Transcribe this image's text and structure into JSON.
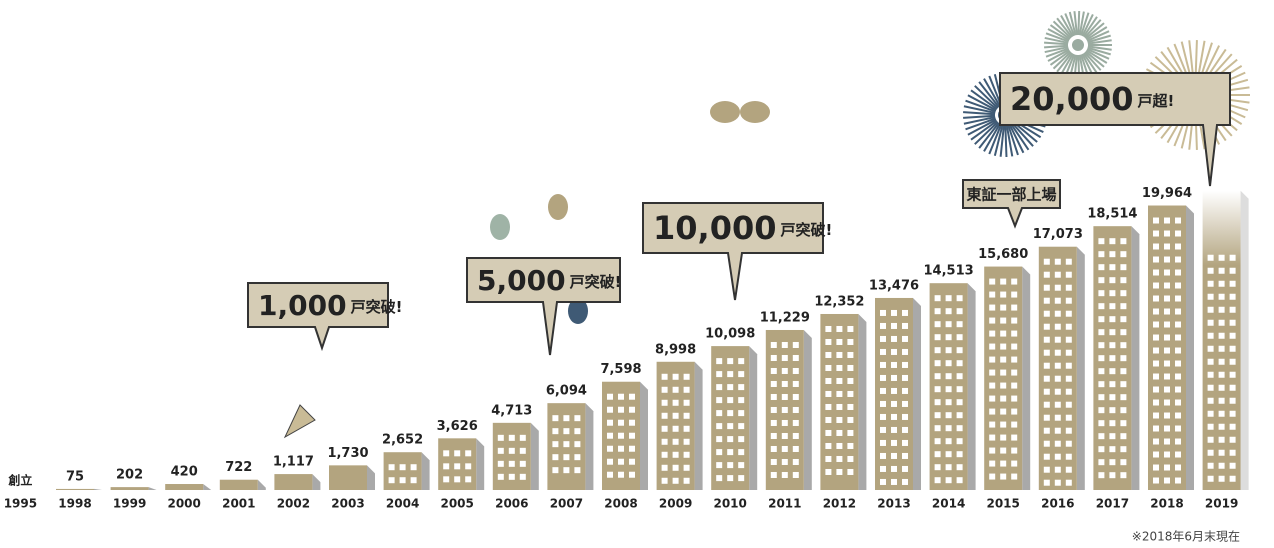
{
  "chart_data": {
    "type": "bar",
    "founding_label": "創立",
    "categories": [
      "1995",
      "1998",
      "1999",
      "2000",
      "2001",
      "2002",
      "2003",
      "2004",
      "2005",
      "2006",
      "2007",
      "2008",
      "2009",
      "2010",
      "2011",
      "2012",
      "2013",
      "2014",
      "2015",
      "2016",
      "2017",
      "2018",
      "2019"
    ],
    "values": [
      null,
      75,
      202,
      420,
      722,
      1117,
      1730,
      2652,
      3626,
      4713,
      6094,
      7598,
      8998,
      10098,
      11229,
      12352,
      13476,
      14513,
      15680,
      17073,
      18514,
      19964,
      21000
    ],
    "value_labels": [
      null,
      "75",
      "202",
      "420",
      "722",
      "1,117",
      "1,730",
      "2,652",
      "3,626",
      "4,713",
      "6,094",
      "7,598",
      "8,998",
      "10,098",
      "11,229",
      "12,352",
      "13,476",
      "14,513",
      "15,680",
      "17,073",
      "18,514",
      "19,964",
      null
    ],
    "color": "#b3a47f",
    "annotations": [
      {
        "text": "1,000",
        "suffix": "戸突破!"
      },
      {
        "text": "5,000",
        "suffix": "戸突破!"
      },
      {
        "text": "10,000",
        "suffix": "戸突破!"
      },
      {
        "text": "東証一部上場"
      },
      {
        "text": "20,000",
        "suffix": "戸超!"
      }
    ],
    "footnote": "※2018年6月末現在"
  }
}
